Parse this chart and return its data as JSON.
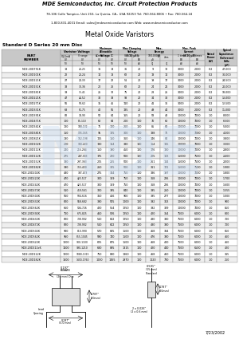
{
  "title": "MDE Semiconductor, Inc. Circuit Protection Products",
  "subtitle1": "78-106 Calle Tampico, Unit 210, La Quinta, CA., USA 92253 Tel: 760-564-8006 • Fax: 760-564-24",
  "subtitle2": "1-800-831-4001 Email: sales@mdesemiconductor.com Web: www.mdesemiconductor.com",
  "main_title": "Metal Oxide Varistors",
  "section_title": "Standard D Series 20 mm Disc",
  "rows": [
    [
      "MDE-20D751K",
      "18",
      "20-25",
      "11",
      "14",
      "36",
      "20",
      "9",
      "12",
      "3000",
      "2000",
      "0.2",
      "47,000"
    ],
    [
      "MDE-20D101K",
      "22",
      "20-24",
      "14",
      "18",
      "62",
      "20",
      "13",
      "14",
      "3000",
      "2000",
      "0.2",
      "30,000"
    ],
    [
      "MDE-20D121K",
      "27",
      "24-30",
      "17",
      "22",
      "51",
      "20",
      "19",
      "17",
      "3000",
      "2000",
      "0.2",
      "24,500"
    ],
    [
      "MDE-20D151K",
      "33",
      "30-36",
      "20",
      "26",
      "62",
      "20",
      "24",
      "21",
      "3000",
      "2000",
      "0.2",
      "20,000"
    ],
    [
      "MDE-20D181K",
      "39",
      "35-41",
      "25",
      "32",
      "75",
      "20",
      "28",
      "25",
      "3000",
      "2000",
      "0.2",
      "18,000"
    ],
    [
      "MDE-20D221K",
      "47",
      "42-52",
      "30",
      "38",
      "93",
      "20",
      "34",
      "30",
      "3000",
      "2000",
      "0.2",
      "13,000"
    ],
    [
      "MDE-20D271K",
      "56",
      "50-62",
      "35",
      "45",
      "110",
      "20",
      "41",
      "36",
      "3000",
      "2000",
      "0.2",
      "12,500"
    ],
    [
      "MDE-20D331K",
      "68",
      "61-75",
      "40",
      "56",
      "135",
      "20",
      "49",
      "44",
      "3000",
      "2000",
      "0.2",
      "11,000"
    ],
    [
      "MDE-20D391K",
      "82",
      "74-90",
      "50",
      "64",
      "165",
      "20",
      "58",
      "48",
      "10000",
      "7000",
      "1.0",
      "8,000"
    ],
    [
      "MDE-20D471K",
      "100",
      "85-110",
      "60",
      "84",
      "200",
      "100",
      "70",
      "60",
      "10000",
      "7000",
      "1.0",
      "6,500"
    ],
    [
      "MDE-20D561K",
      "120",
      "108-132",
      "75",
      "100",
      "260",
      "100",
      "85",
      "63",
      "10000",
      "7000",
      "1.0",
      "5,000"
    ],
    [
      "MDE-20D681K",
      "150",
      "135-165",
      "95",
      "125",
      "300",
      "100",
      "138",
      "75",
      "10000",
      "7000",
      "1.0",
      "4,200"
    ],
    [
      "MDE-20D821K",
      "180",
      "162-198",
      "115",
      "150",
      "360",
      "100",
      "146",
      "84",
      "10000",
      "7000",
      "1.0",
      "3,800"
    ],
    [
      "MDE-20D102K",
      "200",
      "180-220",
      "130",
      "164",
      "330",
      "100",
      "154",
      "115",
      "10000",
      "7000",
      "1.0",
      "3,300"
    ],
    [
      "MDE-20D112K",
      "240",
      "216-264",
      "150",
      "190",
      "450",
      "100",
      "176",
      "130",
      "10000",
      "7000",
      "1.0",
      "2,800"
    ],
    [
      "MDE-20D122K",
      "275",
      "247-303",
      "175",
      "220",
      "500",
      "100",
      "225",
      "143",
      "15000",
      "7500",
      "1.0",
      "2,400"
    ],
    [
      "MDE-20D152K",
      "330",
      "297-363",
      "205",
      "255",
      "500",
      "100",
      "261",
      "144",
      "15000",
      "7500",
      "1.0",
      "2,000"
    ],
    [
      "MDE-20D182K",
      "390",
      "355-430",
      "250",
      "305",
      "500",
      "100",
      "311",
      "172",
      "15000",
      "7500",
      "1.0",
      "1,900"
    ],
    [
      "MDE-20D202K",
      "430",
      "387-473",
      "275",
      "344",
      "750",
      "100",
      "336",
      "197",
      "10000",
      "7000",
      "1.0",
      "1,800"
    ],
    [
      "MDE-20D222K",
      "470",
      "423-517",
      "300",
      "369",
      "750",
      "100",
      "368",
      "226",
      "10000",
      "7000",
      "1.0",
      "1,700"
    ],
    [
      "MDE-20D242K",
      "470",
      "423-517",
      "300",
      "369",
      "750",
      "100",
      "368",
      "226",
      "10000",
      "7000",
      "1.0",
      "1,600"
    ],
    [
      "MDE-20D272K",
      "510",
      "459-561",
      "320",
      "395",
      "840",
      "100",
      "395",
      "250",
      "10000",
      "7000",
      "1.0",
      "1,555"
    ],
    [
      "MDE-20D302K",
      "560",
      "504-616",
      "350",
      "456",
      "900",
      "100",
      "395",
      "277",
      "10000",
      "7000",
      "1.0",
      "1,000"
    ],
    [
      "MDE-20D332K",
      "620",
      "558-682",
      "390",
      "505",
      "1000",
      "100",
      "392",
      "313",
      "10000",
      "7000",
      "1.0",
      "900"
    ],
    [
      "MDE-20D362K",
      "660",
      "594-726",
      "420",
      "524",
      "1250",
      "100",
      "392",
      "339",
      "10000",
      "7000",
      "1.0",
      "850"
    ],
    [
      "MDE-20D392K",
      "750",
      "675-825",
      "460",
      "576",
      "1250",
      "100",
      "420",
      "364",
      "7500",
      "6000",
      "1.0",
      "800"
    ],
    [
      "MDE-20D432K",
      "820",
      "738-902",
      "510",
      "642",
      "1250",
      "100",
      "430",
      "380",
      "7500",
      "6000",
      "1.0",
      "700"
    ],
    [
      "MDE-20D472K",
      "820",
      "738-902",
      "510",
      "642",
      "1250",
      "100",
      "430",
      "380",
      "7500",
      "6000",
      "1.0",
      "700"
    ],
    [
      "MDE-20D502K",
      "900",
      "810-990",
      "570",
      "695",
      "1500",
      "100",
      "468",
      "384",
      "7500",
      "6000",
      "1.0",
      "650"
    ],
    [
      "MDE-20D562K",
      "950",
      "855-1045",
      "590",
      "740",
      "1500",
      "100",
      "476",
      "380",
      "7500",
      "6000",
      "1.0",
      "460"
    ],
    [
      "MDE-20D622K",
      "1000",
      "900-1100",
      "625",
      "675",
      "1500",
      "100",
      "468",
      "400",
      "7500",
      "6000",
      "1.0",
      "460"
    ],
    [
      "MDE-20D112xK",
      "1100",
      "990-1210",
      "680",
      "895",
      "1815",
      "100",
      "420",
      "440",
      "7500",
      "6500",
      "1.0",
      "420"
    ],
    [
      "MDE-20D122K",
      "1200",
      "1080-1315",
      "750",
      "890",
      "1860",
      "100",
      "468",
      "460",
      "7500",
      "6000",
      "1.0",
      "315"
    ],
    [
      "MDE-20D182K",
      "1600",
      "1430-1760",
      "1000",
      "1465",
      "2970",
      "100",
      "1020",
      "730",
      "7500",
      "6000",
      "1.0",
      "250"
    ]
  ],
  "date": "7/23/2002",
  "hbg": "#c8c8c8",
  "sbg": "#dcdcdc",
  "row_even": "#ffffff",
  "row_odd": "#eeeeee",
  "watermark": "#c5d8ef"
}
